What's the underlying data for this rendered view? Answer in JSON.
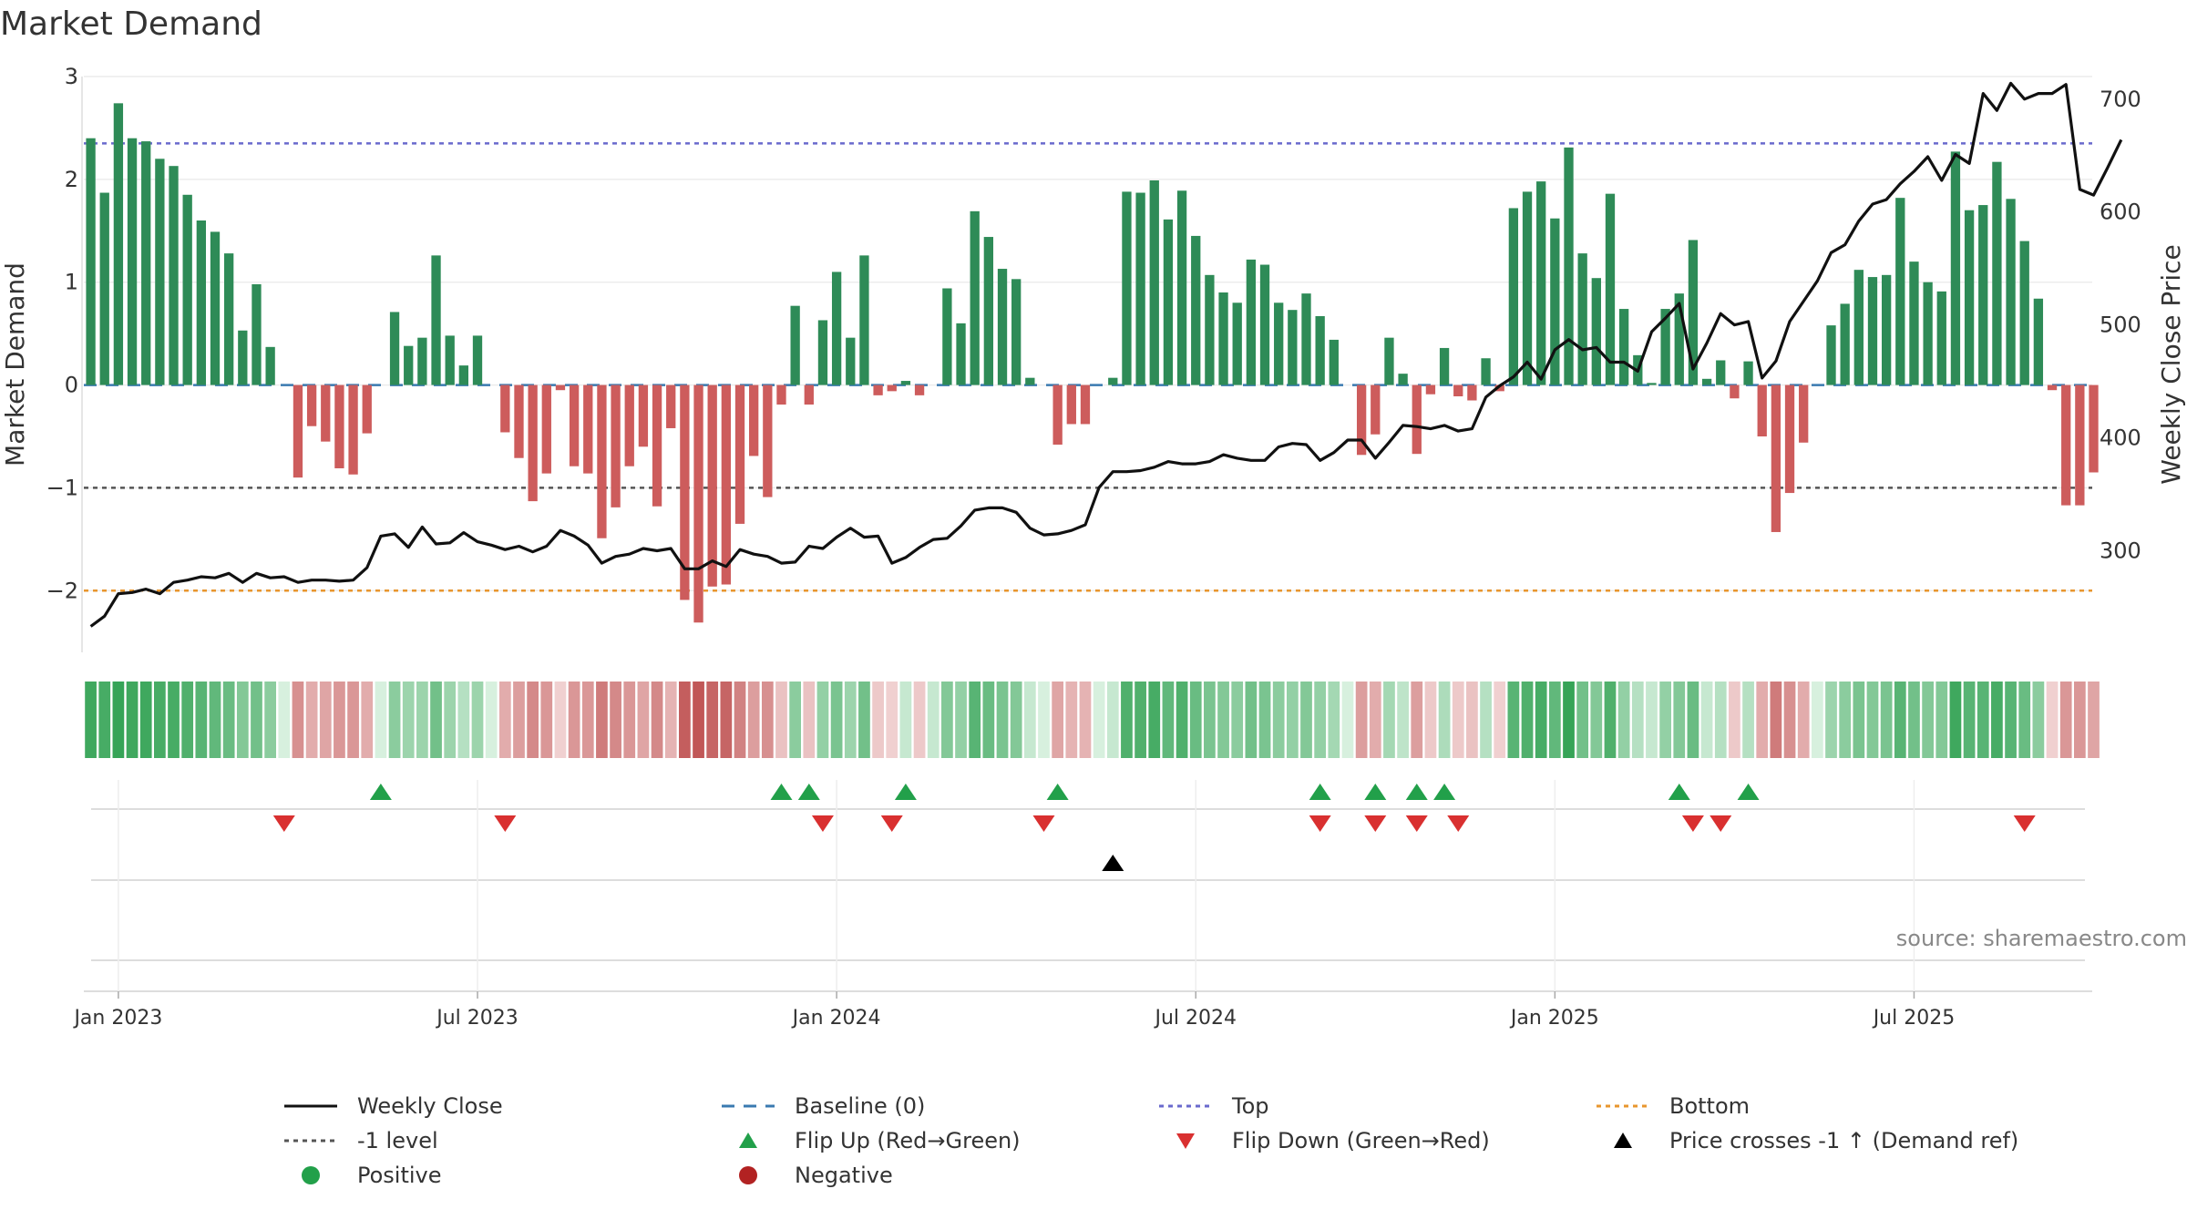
{
  "title": "Market Demand",
  "source": "source: sharemaestro.com",
  "colors": {
    "positive": "#2e8b57",
    "negative": "#cd5c5c",
    "price": "#111111",
    "top": "#6a6acd",
    "bottom": "#e8962e",
    "minus1": "#555555",
    "baseline": "#3a7ab0",
    "flip_up": "#22a04a",
    "flip_down": "#d93030",
    "price_cross": "#000000"
  },
  "legend": {
    "weekly_close": "Weekly Close",
    "baseline": "Baseline (0)",
    "top": "Top",
    "bottom": "Bottom",
    "minus1": "-1 level",
    "flip_up": "Flip Up (Red→Green)",
    "flip_down": "Flip Down (Green→Red)",
    "price_cross": "Price crosses -1 ↑ (Demand ref)",
    "positive": "Positive",
    "negative": "Negative"
  },
  "chart_data": {
    "type": "bar",
    "title": "Market Demand",
    "ylabel": "Market Demand",
    "y2label": "Weekly Close Price",
    "ylim": [
      -2.6,
      3.0
    ],
    "y2lim": [
      210,
      720
    ],
    "yticks": [
      3,
      2,
      1,
      0,
      -1,
      -2
    ],
    "ytick_labels": [
      "3",
      "2",
      "1",
      "0",
      "−1",
      "−2"
    ],
    "y2ticks": [
      700,
      600,
      500,
      400,
      300
    ],
    "y2tick_labels": [
      "700",
      "600",
      "500",
      "400",
      "300"
    ],
    "x_axis_ticks": [
      {
        "label": "Jan 2023",
        "week": 2
      },
      {
        "label": "Jul 2023",
        "week": 28
      },
      {
        "label": "Jan 2024",
        "week": 54
      },
      {
        "label": "Jul 2024",
        "week": 80
      },
      {
        "label": "Jan 2025",
        "week": 106
      },
      {
        "label": "Jul 2025",
        "week": 132
      }
    ],
    "reference_lines": {
      "top": 2.35,
      "minus1": -1,
      "bottom": -2,
      "baseline": 0
    },
    "demand": [
      2.4,
      1.87,
      2.74,
      2.4,
      2.37,
      2.2,
      2.13,
      1.85,
      1.6,
      1.49,
      1.28,
      0.53,
      0.98,
      0.37,
      0,
      -0.9,
      -0.4,
      -0.55,
      -0.81,
      -0.87,
      -0.47,
      0,
      0.71,
      0.38,
      0.46,
      1.26,
      0.48,
      0.19,
      0.48,
      0,
      -0.46,
      -0.71,
      -1.13,
      -0.86,
      -0.05,
      -0.79,
      -0.86,
      -1.49,
      -1.19,
      -0.79,
      -0.6,
      -1.18,
      -0.42,
      -2.09,
      -2.31,
      -1.96,
      -1.94,
      -1.35,
      -0.69,
      -1.09,
      -0.19,
      0.77,
      -0.19,
      0.63,
      1.1,
      0.46,
      1.26,
      -0.1,
      -0.06,
      0.04,
      -0.1,
      0,
      0.94,
      0.6,
      1.69,
      1.44,
      1.13,
      1.03,
      0.07,
      0,
      -0.58,
      -0.38,
      -0.38,
      0,
      0.07,
      1.88,
      1.87,
      1.99,
      1.61,
      1.89,
      1.45,
      1.07,
      0.9,
      0.8,
      1.22,
      1.17,
      0.8,
      0.73,
      0.89,
      0.67,
      0.44,
      0,
      -0.68,
      -0.48,
      0.46,
      0.11,
      -0.67,
      -0.09,
      0.36,
      -0.11,
      -0.15,
      0.26,
      -0.06,
      1.72,
      1.88,
      1.98,
      1.62,
      2.31,
      1.28,
      1.04,
      1.86,
      0.74,
      0.29,
      0.02,
      0.74,
      0.89,
      1.41,
      0.06,
      0.24,
      -0.13,
      0.23,
      -0.5,
      -1.43,
      -1.05,
      -0.56,
      0,
      0.58,
      0.79,
      1.12,
      1.05,
      1.07,
      1.82,
      1.2,
      1.0,
      0.91,
      2.27,
      1.7,
      1.75,
      2.17,
      1.81,
      1.4,
      0.84,
      -0.05,
      -1.17,
      -1.17,
      -0.85
    ],
    "weekly_close": [
      233,
      242,
      262,
      263,
      266,
      262,
      272,
      274,
      277,
      276,
      280,
      272,
      280,
      276,
      277,
      272,
      274,
      274,
      273,
      274,
      285,
      313,
      315,
      303,
      321,
      306,
      307,
      316,
      308,
      305,
      301,
      304,
      299,
      304,
      318,
      313,
      305,
      289,
      295,
      297,
      302,
      300,
      302,
      284,
      284,
      291,
      286,
      301,
      297,
      295,
      289,
      290,
      304,
      302,
      312,
      320,
      312,
      313,
      289,
      294,
      303,
      310,
      311,
      322,
      336,
      338,
      338,
      334,
      320,
      314,
      315,
      318,
      323,
      356,
      370,
      370,
      371,
      374,
      379,
      377,
      377,
      379,
      385,
      382,
      380,
      380,
      392,
      395,
      394,
      380,
      387,
      398,
      398,
      382,
      396,
      411,
      410,
      408,
      411,
      406,
      408,
      436,
      446,
      454,
      467,
      452,
      478,
      487,
      478,
      480,
      467,
      467,
      459,
      494,
      506,
      519,
      461,
      484,
      510,
      500,
      503,
      453,
      468,
      503,
      521,
      539,
      564,
      571,
      592,
      607,
      611,
      625,
      636,
      649,
      628,
      651,
      643,
      705,
      690,
      714,
      700,
      705,
      705,
      713,
      620,
      615,
      639,
      664
    ],
    "heat_strip_intensity": [
      0.9,
      0.85,
      0.95,
      0.9,
      0.9,
      0.85,
      0.85,
      0.8,
      0.75,
      0.7,
      0.65,
      0.5,
      0.6,
      0.45,
      0,
      0.55,
      0.35,
      0.4,
      0.5,
      0.5,
      0.35,
      0,
      0.45,
      0.35,
      0.35,
      0.6,
      0.35,
      0.2,
      0.35,
      0,
      0.35,
      0.45,
      0.6,
      0.5,
      0.1,
      0.5,
      0.5,
      0.7,
      0.6,
      0.5,
      0.4,
      0.6,
      0.3,
      0.9,
      0.95,
      0.85,
      0.85,
      0.65,
      0.45,
      0.55,
      0.2,
      0.45,
      0.2,
      0.4,
      0.55,
      0.35,
      0.6,
      0.15,
      0.1,
      0.1,
      0.15,
      0.1,
      0.5,
      0.4,
      0.75,
      0.65,
      0.55,
      0.5,
      0.1,
      0,
      0.4,
      0.3,
      0.3,
      0,
      0.1,
      0.8,
      0.8,
      0.85,
      0.7,
      0.8,
      0.65,
      0.55,
      0.5,
      0.45,
      0.6,
      0.55,
      0.45,
      0.4,
      0.5,
      0.4,
      0.3,
      0,
      0.45,
      0.35,
      0.3,
      0.15,
      0.45,
      0.15,
      0.25,
      0.15,
      0.2,
      0.2,
      0.1,
      0.75,
      0.8,
      0.85,
      0.7,
      0.95,
      0.6,
      0.5,
      0.8,
      0.4,
      0.2,
      0.1,
      0.4,
      0.5,
      0.65,
      0.1,
      0.2,
      0.15,
      0.2,
      0.35,
      0.7,
      0.55,
      0.35,
      0,
      0.35,
      0.45,
      0.55,
      0.5,
      0.55,
      0.75,
      0.6,
      0.5,
      0.5,
      0.9,
      0.75,
      0.75,
      0.85,
      0.75,
      0.65,
      0.45,
      0.1,
      0.5,
      0.5,
      0.4
    ],
    "flip_up_weeks": [
      21,
      50,
      52,
      59,
      70,
      89,
      93,
      96,
      98,
      115,
      120
    ],
    "flip_down_weeks": [
      14,
      30,
      53,
      58,
      69,
      89,
      93,
      96,
      99,
      116,
      118,
      140
    ],
    "price_cross_weeks": [
      74
    ]
  }
}
